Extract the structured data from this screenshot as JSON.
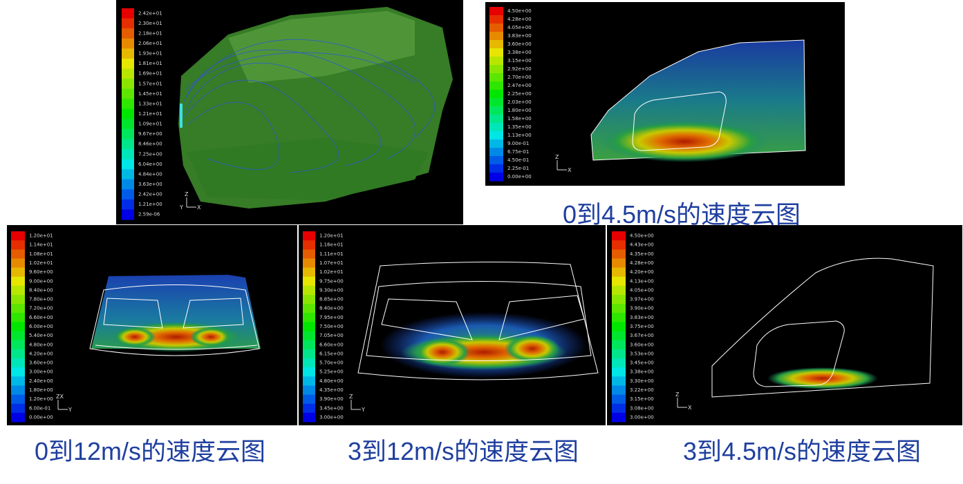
{
  "panels": [
    {
      "legend": [
        "2.42e+01",
        "2.30e+01",
        "2.18e+01",
        "2.06e+01",
        "1.93e+01",
        "1.81e+01",
        "1.69e+01",
        "1.57e+01",
        "1.45e+01",
        "1.33e+01",
        "1.21e+01",
        "1.09e+01",
        "9.67e+00",
        "8.46e+00",
        "7.25e+00",
        "6.04e+00",
        "4.84e+00",
        "3.63e+00",
        "2.42e+00",
        "1.21e+00",
        "2.59e-06"
      ],
      "axes": [
        "Z",
        "X",
        "Y"
      ]
    },
    {
      "legend": [
        "4.50e+00",
        "4.28e+00",
        "4.05e+00",
        "3.83e+00",
        "3.60e+00",
        "3.38e+00",
        "3.15e+00",
        "2.92e+00",
        "2.70e+00",
        "2.47e+00",
        "2.25e+00",
        "2.03e+00",
        "1.80e+00",
        "1.58e+00",
        "1.35e+00",
        "1.13e+00",
        "9.00e-01",
        "6.75e-01",
        "4.50e-01",
        "2.25e-01",
        "0.00e+00"
      ],
      "axes": [
        "Z",
        "X"
      ],
      "caption": "0到4.5m/s的速度云图"
    },
    {
      "legend": [
        "1.20e+01",
        "1.14e+01",
        "1.08e+01",
        "1.02e+01",
        "9.60e+00",
        "9.00e+00",
        "8.40e+00",
        "7.80e+00",
        "7.20e+00",
        "6.60e+00",
        "6.00e+00",
        "5.40e+00",
        "4.80e+00",
        "4.20e+00",
        "3.60e+00",
        "3.00e+00",
        "2.40e+00",
        "1.80e+00",
        "1.20e+00",
        "6.00e-01",
        "0.00e+00"
      ],
      "axes": [
        "ZX",
        "Y"
      ],
      "caption": "0到12m/s的速度云图"
    },
    {
      "legend": [
        "1.20e+01",
        "1.16e+01",
        "1.11e+01",
        "1.07e+01",
        "1.02e+01",
        "9.75e+00",
        "9.30e+00",
        "8.85e+00",
        "8.40e+00",
        "7.95e+00",
        "7.50e+00",
        "7.05e+00",
        "6.60e+00",
        "6.15e+00",
        "5.70e+00",
        "5.25e+00",
        "4.80e+00",
        "4.35e+00",
        "3.90e+00",
        "3.45e+00",
        "3.00e+00"
      ],
      "axes": [
        "Z",
        "Y"
      ],
      "caption": "3到12m/s的速度云图"
    },
    {
      "legend": [
        "4.50e+00",
        "4.43e+00",
        "4.35e+00",
        "4.28e+00",
        "4.20e+00",
        "4.13e+00",
        "4.05e+00",
        "3.97e+00",
        "3.90e+00",
        "3.83e+00",
        "3.75e+00",
        "3.67e+00",
        "3.60e+00",
        "3.53e+00",
        "3.45e+00",
        "3.38e+00",
        "3.30e+00",
        "3.22e+00",
        "3.15e+00",
        "3.08e+00",
        "3.00e+00"
      ],
      "axes": [
        "Z",
        "X"
      ],
      "caption": "3到4.5m/s的速度云图"
    }
  ]
}
